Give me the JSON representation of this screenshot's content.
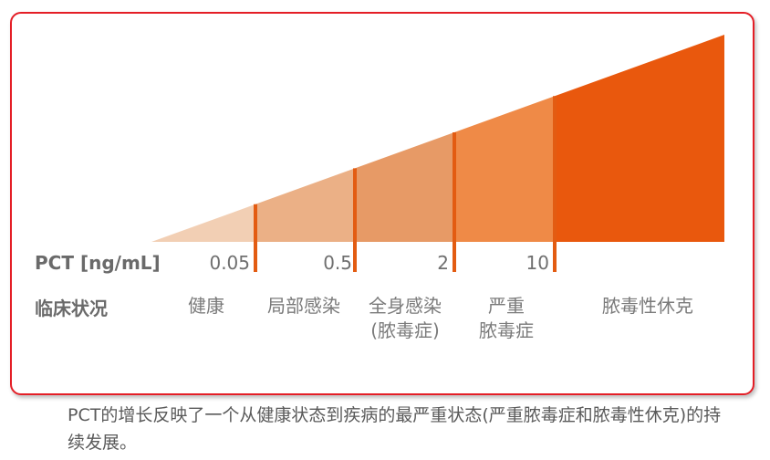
{
  "colors": {
    "border": "#e41e26",
    "divider": "#e35c12",
    "segments": [
      "#f2cfb4",
      "#ebb086",
      "#e79a66",
      "#ef8a47",
      "#e9580d"
    ]
  },
  "row_labels": {
    "pct": "PCT [ng/mL]",
    "clinical": "临床状况"
  },
  "thresholds": [
    "0.05",
    "0.5",
    "2",
    "10"
  ],
  "conditions": [
    {
      "line1": "健康",
      "line2": ""
    },
    {
      "line1": "局部感染",
      "line2": ""
    },
    {
      "line1": "全身感染",
      "line2": "(脓毒症)"
    },
    {
      "line1": "严重",
      "line2": "脓毒症"
    },
    {
      "line1": "脓毒性休克",
      "line2": ""
    }
  ],
  "caption": "PCT的增长反映了一个从健康状态到疾病的最严重状态(严重脓毒症和脓毒性休克)的持续发展。"
}
